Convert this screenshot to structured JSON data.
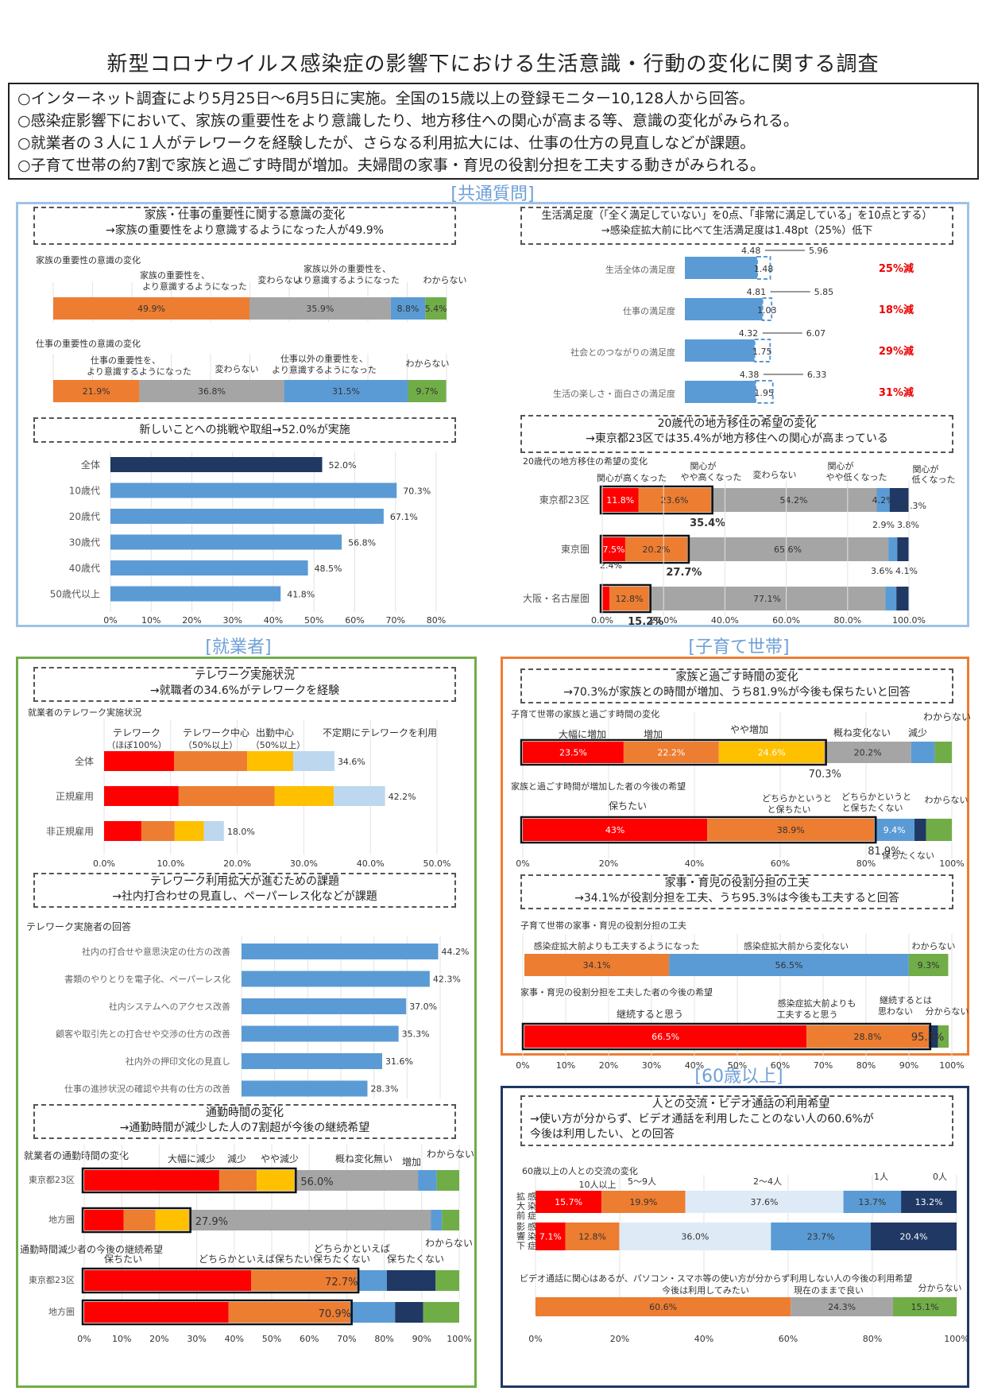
{
  "title": "新型コロナウイルス感染症の影響下における生活意識・行動の変化に関する調査",
  "summary": [
    "○インターネット調査により5月25日～6月5日に実施。全国の15歳以上の登録モニター10,128人から回答。",
    "○感染症影響下において、家族の重要性をより意識したり、地方移住への関心が高まる等、意識の変化がみられる。",
    "○就業者の３人に１人がテレワークを経験したが、さらなる利用拡大には、仕事の仕方の見直しなどが課題。",
    "○子育て世帯の約7割で家族と過ごす時間が増加。夫婦間の家事・育児の役割分担を工夫する動きがみられる。"
  ],
  "sections": {
    "common": "[共通質問]",
    "workers": "[就業者]",
    "child": "[子育て世帯]",
    "senior": "[60歳以上]"
  },
  "boxes": {
    "family_work": [
      "家族・仕事の重要性に関する意識の変化",
      "→家族の重要性をより意識するようになった人が49.9%"
    ],
    "satisfaction": [
      "生活満足度（「全く満足していない」を0点、「非常に満足している」を10点とする）",
      "→感染症拡大前に比べて生活満足度は1.48pt（25%）低下"
    ],
    "challenge": [
      "新しいことへの挑戦や取組→52.0%が実施"
    ],
    "relocation": [
      "20歳代の地方移住の希望の変化",
      "→東京都23区では35.4%が地方移住への関心が高まっている"
    ],
    "telework": [
      "テレワーク実施状況",
      "→就職者の34.6%がテレワークを経験"
    ],
    "tw_issue": [
      "テレワーク利用拡大が進むための課題",
      "→社内打合わせの見直し、ペーパーレス化などが課題"
    ],
    "commute": [
      "通勤時間の変化",
      "→通勤時間が減少した人の7割超が今後の継続希望"
    ],
    "family_time": [
      "家族と過ごす時間の変化",
      "→70.3%が家族との時間が増加、うち81.9%が今後も保ちたいと回答"
    ],
    "housework": [
      "家事・育児の役割分担の工夫",
      "→34.1%が役割分担を工夫、うち95.3%は今後も工夫すると回答"
    ],
    "exchange": [
      "人との交流・ビデオ通話の利用希望",
      "→使い方が分からず、ビデオ通話を利用したことのない人の60.6%が",
      "今後は利用したい、との回答"
    ]
  },
  "colors": {
    "orange": "#ed7d31",
    "gray": "#a5a5a5",
    "blue": "#5b9bd5",
    "green": "#70ad47",
    "red": "#ff0000",
    "navy": "#1f3864",
    "yellow": "#ffc000",
    "lightblue": "#bdd7ee",
    "paleblue": "#deebf7",
    "darkblue": "#203864"
  },
  "chart_data": [
    {
      "id": "family",
      "type": "bar",
      "title": "家族の重要性の意識の変化",
      "segments": [
        "家族の重要性を、より意識するようになった",
        "変わらない",
        "家族以外の重要性を、より意識するようになった",
        "わからない"
      ],
      "values": [
        49.9,
        35.9,
        8.8,
        5.4
      ]
    },
    {
      "id": "work",
      "type": "bar",
      "title": "仕事の重要性の意識の変化",
      "segments": [
        "仕事の重要性を、より意識するようになった",
        "変わらない",
        "仕事以外の重要性を、より意識するようになった",
        "わからない"
      ],
      "values": [
        21.9,
        36.8,
        31.5,
        9.7
      ]
    },
    {
      "id": "satis",
      "type": "bar",
      "categories": [
        "生活全体の満足度",
        "仕事の満足度",
        "社会とのつながりの満足度",
        "生活の楽しさ・面白さの満足度"
      ],
      "after": [
        4.48,
        4.81,
        4.32,
        4.38
      ],
      "before": [
        5.96,
        5.85,
        6.07,
        6.33
      ],
      "drop": [
        1.48,
        1.03,
        1.75,
        1.95
      ],
      "rate": [
        "25%減",
        "18%減",
        "29%減",
        "31%減"
      ]
    },
    {
      "id": "challenge",
      "type": "bar",
      "categories": [
        "全体",
        "10歳代",
        "20歳代",
        "30歳代",
        "40歳代",
        "50歳代以上"
      ],
      "values": [
        52.0,
        70.3,
        67.1,
        56.8,
        48.5,
        41.8
      ],
      "xticks": [
        "0%",
        "10%",
        "20%",
        "30%",
        "40%",
        "50%",
        "60%",
        "70%",
        "80%"
      ],
      "xlim": [
        0,
        80
      ]
    },
    {
      "id": "relocation",
      "type": "bar",
      "title": "20歳代の地方移住の希望の変化",
      "categories": [
        "東京都23区",
        "東京圏",
        "大阪・名古屋圏"
      ],
      "segments": [
        "関心が高くなった",
        "関心がやや高くなった",
        "変わらない",
        "関心がやや低くなった",
        "関心が低くなった"
      ],
      "values": [
        [
          11.8,
          23.6,
          54.2,
          4.2,
          6.3
        ],
        [
          7.5,
          20.2,
          65.6,
          2.9,
          3.8
        ],
        [
          2.4,
          12.8,
          77.1,
          3.6,
          4.1
        ]
      ],
      "totals": [
        "35.4%",
        "27.7%",
        "15.2%"
      ],
      "xticks": [
        "0.0%",
        "20.0%",
        "40.0%",
        "60.0%",
        "80.0%",
        "100.0%"
      ]
    },
    {
      "id": "telework",
      "type": "bar",
      "title": "就業者のテレワーク実施状況",
      "categories": [
        "全体",
        "正規雇用",
        "非正規雇用"
      ],
      "segments": [
        "テレワーク（ほぼ100%）",
        "テレワーク中心（50%以上）",
        "出勤中心（50%以上）",
        "不定期にテレワークを利用"
      ],
      "values": [
        [
          10.5,
          11.0,
          6.9,
          6.2
        ],
        [
          11.2,
          14.4,
          8.9,
          7.7
        ],
        [
          5.6,
          5.0,
          4.4,
          3.0
        ]
      ],
      "totals": [
        "34.6%",
        "42.2%",
        "18.0%"
      ],
      "xticks": [
        "0.0%",
        "10.0%",
        "20.0%",
        "30.0%",
        "40.0%",
        "50.0%"
      ]
    },
    {
      "id": "tw_issue",
      "type": "bar",
      "title": "テレワーク実施者の回答",
      "categories": [
        "社内の打合せや意思決定の仕方の改善",
        "書類のやりとりを電子化、ペーパーレス化",
        "社内システムへのアクセス改善",
        "顧客や取引先との打合せや交渉の仕方の改善",
        "社内外の押印文化の見直し",
        "仕事の進捗状況の確認や共有の仕方の改善"
      ],
      "values": [
        44.2,
        42.3,
        37.0,
        35.3,
        31.6,
        28.3
      ]
    },
    {
      "id": "commute",
      "type": "bar",
      "title": "就業者の通勤時間の変化",
      "categories": [
        "東京都23区",
        "地方圏"
      ],
      "segments": [
        "大幅に減少",
        "減少",
        "やや減少",
        "概ね変化無い",
        "増加",
        "わからない"
      ],
      "values": [
        [
          36.0,
          10.0,
          10.0,
          33.0,
          5.0,
          6.0
        ],
        [
          10.5,
          8.5,
          8.9,
          64.5,
          3.0,
          4.6
        ]
      ],
      "totals": [
        "56.0%",
        "27.9%"
      ]
    },
    {
      "id": "commute_future",
      "type": "bar",
      "title": "通勤時間減少者の今後の継続希望",
      "categories": [
        "東京都23区",
        "地方圏"
      ],
      "segments": [
        "保ちたい",
        "どちらかといえば保ちたい",
        "どちらかといえば保ちたくない",
        "保ちたくない",
        "わからない"
      ],
      "values": [
        [
          44.5,
          28.2,
          8.0,
          13.0,
          6.3
        ],
        [
          38.5,
          32.4,
          12.0,
          7.5,
          9.6
        ]
      ],
      "totals": [
        "72.7%",
        "70.9%"
      ],
      "xticks": [
        "0%",
        "10%",
        "20%",
        "30%",
        "40%",
        "50%",
        "60%",
        "70%",
        "80%",
        "90%",
        "100%"
      ]
    },
    {
      "id": "family_time",
      "type": "bar",
      "title": "子育て世帯の家族と過ごす時間の変化",
      "segments": [
        "大幅に増加",
        "増加",
        "やや増加",
        "概ね変化ない",
        "減少",
        "わからない"
      ],
      "values": [
        23.5,
        22.2,
        24.6,
        20.2,
        5.5,
        4.0
      ],
      "total": "70.3%"
    },
    {
      "id": "family_future",
      "type": "bar",
      "title": "家族と過ごす時間が増加した者の今後の希望",
      "segments": [
        "保ちたい",
        "どちらかというと保ちたい",
        "どちらかというと保ちたくない",
        "保ちたくない",
        "わからない"
      ],
      "values": [
        43.0,
        38.9,
        9.4,
        2.7,
        6.0
      ],
      "total": "81.9%",
      "xticks": [
        "0%",
        "20%",
        "40%",
        "60%",
        "80%",
        "100%"
      ]
    },
    {
      "id": "housework",
      "type": "bar",
      "title": "子育て世帯の家事・育児の役割分担の工夫",
      "segments": [
        "感染症拡大前よりも工夫するようになった",
        "感染症拡大前から変化ない",
        "わからない"
      ],
      "values": [
        34.1,
        56.5,
        9.3
      ]
    },
    {
      "id": "housework_future",
      "type": "bar",
      "title": "家事・育児の役割分担を工夫した者の今後の希望",
      "segments": [
        "継続すると思う",
        "感染症拡大前よりも工夫すると思う",
        "継続するとは思わない",
        "分からない"
      ],
      "values": [
        66.5,
        28.8,
        2.2,
        2.5
      ],
      "total": "95.3%",
      "xticks": [
        "0%",
        "10%",
        "20%",
        "30%",
        "40%",
        "50%",
        "60%",
        "70%",
        "80%",
        "90%",
        "100%"
      ]
    },
    {
      "id": "exchange",
      "type": "bar",
      "title": "60歳以上の人との交流の変化",
      "categories": [
        "感染症拡大前",
        "感染症影響下"
      ],
      "segments": [
        "10人以上",
        "5～9人",
        "2～4人",
        "1人",
        "0人"
      ],
      "values": [
        [
          15.7,
          19.9,
          37.6,
          13.7,
          13.2
        ],
        [
          7.1,
          12.8,
          36.0,
          23.7,
          20.4
        ]
      ]
    },
    {
      "id": "video",
      "type": "bar",
      "title": "ビデオ通話に関心はあるが、パソコン・スマホ等の使い方が分からず利用しない人の今後の利用希望",
      "segments": [
        "今後は利用してみたい",
        "現在のままで良い",
        "分からない"
      ],
      "values": [
        60.6,
        24.3,
        15.1
      ],
      "xticks": [
        "0%",
        "20%",
        "40%",
        "60%",
        "80%",
        "100%"
      ]
    }
  ]
}
